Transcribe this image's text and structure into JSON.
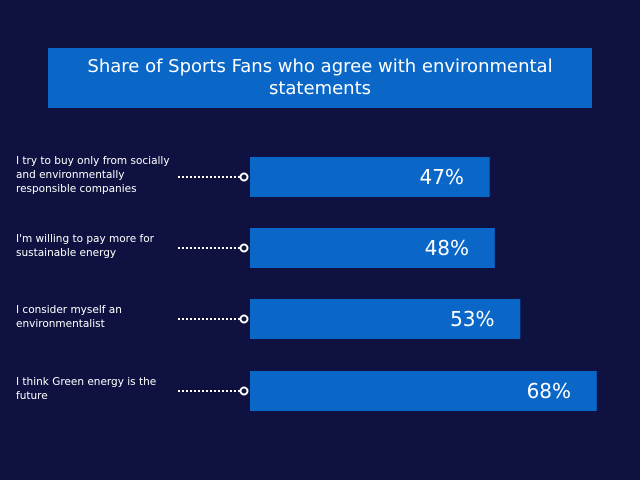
{
  "chart_data": {
    "type": "bar",
    "orientation": "horizontal",
    "title": "Share of Sports Fans who agree with environmental statements",
    "categories": [
      "I try to buy only from socially and environmentally responsible companies",
      "I'm willing to pay more for sustainable energy",
      "I consider myself an environmentalist",
      "I think Green energy is the future"
    ],
    "values": [
      47,
      48,
      53,
      68
    ],
    "value_labels": [
      "47%",
      "48%",
      "53%",
      "68%"
    ],
    "unit": "%",
    "xlabel": "",
    "ylabel": "",
    "grid": false,
    "legend": "none"
  },
  "colors": {
    "background": "#0f1140",
    "bar": "#0a67c8",
    "text": "#ffffff",
    "connector": "#ffffff"
  }
}
